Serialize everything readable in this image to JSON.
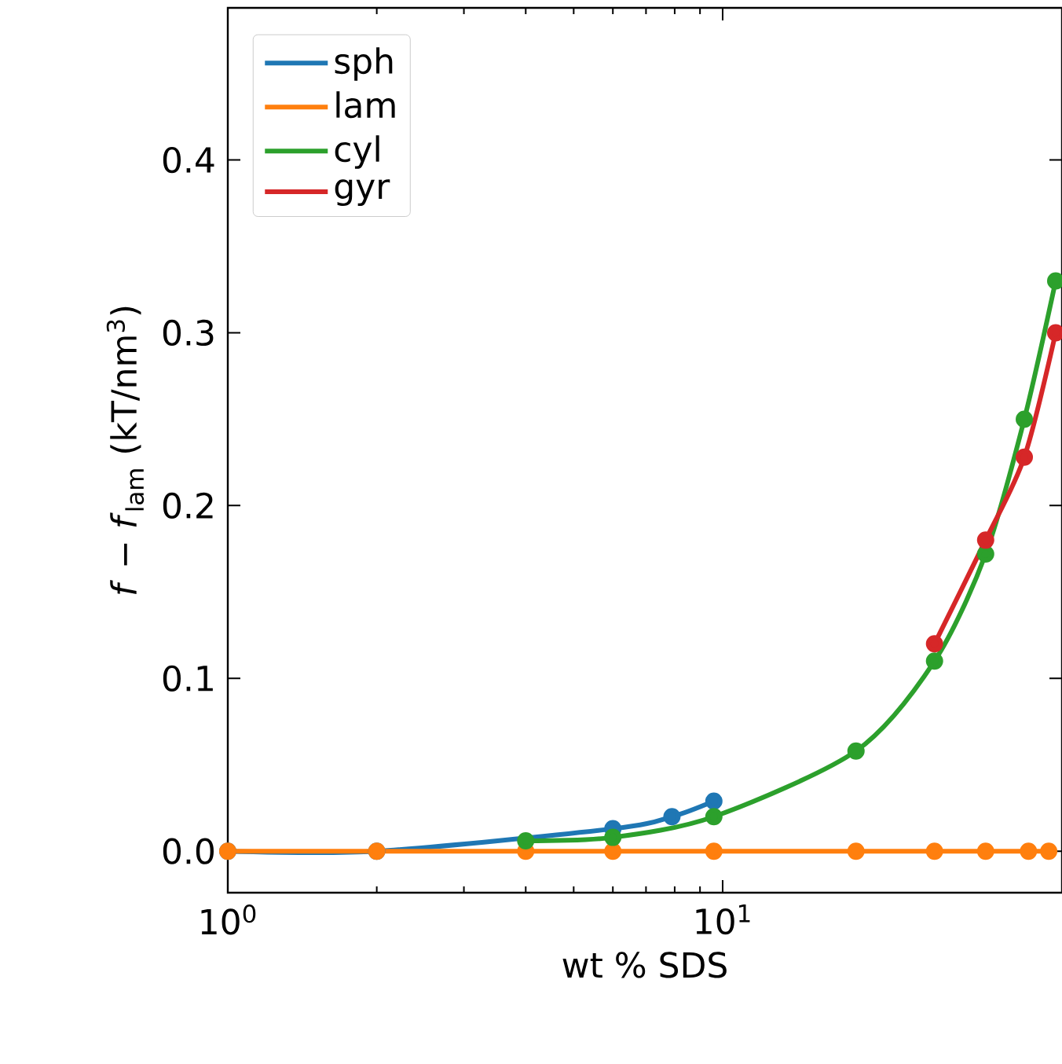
{
  "chart_data": {
    "type": "line",
    "xlabel": "wt % SDS",
    "ylabel": "*f* − *f*$_{lam}$ (kT/nm$^{3}$)",
    "log": "x",
    "xlim": [
      1,
      48.5
    ],
    "ylim": [
      -0.024,
      0.488
    ],
    "xticks": [
      {
        "value": 1,
        "label": "10$^{0}$"
      },
      {
        "value": 10,
        "label": "10$^{1}$"
      }
    ],
    "yticks": [
      {
        "value": 0,
        "label": "0.0"
      },
      {
        "value": 0.1,
        "label": "0.1"
      },
      {
        "value": 0.2,
        "label": "0.2"
      },
      {
        "value": 0.3,
        "label": "0.3"
      },
      {
        "value": 0.4,
        "label": "0.4"
      }
    ],
    "legend": "top left",
    "marker": "circle",
    "grid": false,
    "series": [
      {
        "name": "sph",
        "color": "#1f77b4",
        "x": [
          1,
          2,
          4,
          6,
          7.9,
          9.6
        ],
        "values": [
          0,
          0,
          null,
          0.013,
          0.02,
          0.029
        ]
      },
      {
        "name": "lam",
        "color": "#ff7f0e",
        "x": [
          1,
          2,
          4,
          6,
          9.6,
          18.6,
          26.8,
          34,
          41.5,
          45.6
        ],
        "values": [
          0,
          0,
          0,
          0,
          0,
          0,
          0,
          0,
          0,
          0
        ]
      },
      {
        "name": "cyl",
        "color": "#2ca02c",
        "x": [
          4,
          6,
          9.6,
          18.6,
          26.8,
          34,
          40.7,
          47.1
        ],
        "values": [
          0.006,
          0.008,
          0.02,
          0.058,
          0.11,
          0.172,
          0.25,
          0.33
        ]
      },
      {
        "name": "gyr",
        "color": "#d62728",
        "x": [
          26.8,
          34,
          40.7,
          47.1
        ],
        "values": [
          0.12,
          0.18,
          0.228,
          0.3
        ]
      }
    ]
  }
}
